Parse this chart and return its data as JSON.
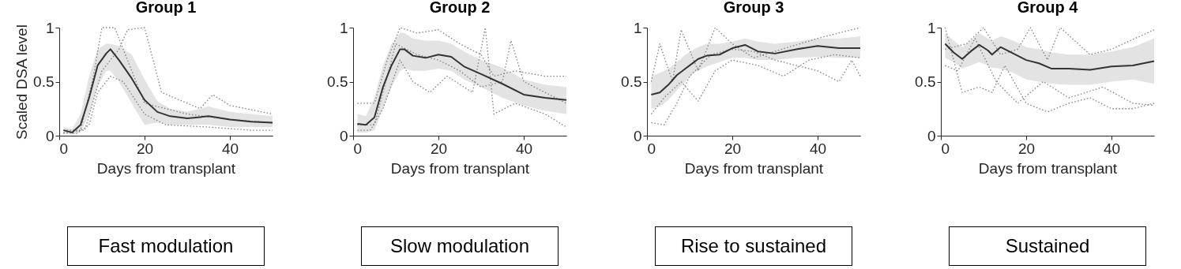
{
  "chart_data": [
    {
      "type": "line",
      "title": "Group 1",
      "xlabel": "Days from transplant",
      "ylabel": "Scaled DSA level",
      "xlim": [
        0,
        50
      ],
      "xticks": [
        0,
        20,
        40
      ],
      "ylim": [
        0,
        1
      ],
      "yticks": [
        0,
        0.5,
        1
      ],
      "annotations": [
        "Fast modulation"
      ],
      "series": [
        {
          "color": "#808080",
          "line_style": "dotted",
          "x": [
            1,
            5,
            8,
            10,
            13,
            16,
            20,
            30,
            40,
            50
          ],
          "values": [
            0.02,
            0.05,
            0.55,
            1,
            1,
            0.7,
            0.3,
            0.2,
            0.15,
            0.12
          ]
        },
        {
          "color": "#808080",
          "line_style": "dotted",
          "x": [
            1,
            6,
            10,
            14,
            16,
            20,
            24,
            33,
            36,
            40,
            50
          ],
          "values": [
            0.05,
            0.05,
            0.6,
            0.8,
            0.98,
            1,
            0.4,
            0.25,
            0.38,
            0.28,
            0.2
          ]
        },
        {
          "color": "#808080",
          "line_style": "dotted",
          "x": [
            1,
            4,
            7,
            9,
            12,
            15,
            20,
            25,
            35,
            45,
            50
          ],
          "values": [
            0.03,
            0.02,
            0.1,
            0.4,
            0.55,
            0.5,
            0.2,
            0.1,
            0.08,
            0.05,
            0.05
          ]
        },
        {
          "color": "#333333",
          "line_style": "solid",
          "x": [
            1,
            3,
            5,
            7,
            9,
            11,
            12,
            14,
            17,
            20,
            23,
            26,
            30,
            35,
            40,
            45,
            50
          ],
          "values": [
            0.05,
            0.03,
            0.1,
            0.35,
            0.65,
            0.76,
            0.8,
            0.7,
            0.53,
            0.33,
            0.22,
            0.18,
            0.16,
            0.18,
            0.15,
            0.13,
            0.12
          ],
          "lower": [
            0.02,
            0.01,
            0.03,
            0.2,
            0.45,
            0.6,
            0.6,
            0.5,
            0.3,
            0.1,
            0.12,
            0.1,
            0.1,
            0.1,
            0.08,
            0.08,
            0.08
          ],
          "upper": [
            0.08,
            0.06,
            0.2,
            0.55,
            0.8,
            0.85,
            0.85,
            0.83,
            0.75,
            0.52,
            0.32,
            0.25,
            0.22,
            0.27,
            0.22,
            0.2,
            0.18
          ]
        }
      ]
    },
    {
      "type": "line",
      "title": "Group 2",
      "xlabel": "Days from transplant",
      "xlim": [
        0,
        50
      ],
      "xticks": [
        0,
        20,
        40
      ],
      "ylim": [
        0,
        1
      ],
      "yticks": [
        0,
        0.5,
        1
      ],
      "annotations": [
        "Slow modulation"
      ],
      "series": [
        {
          "color": "#808080",
          "line_style": "dotted",
          "x": [
            1,
            5,
            8,
            11,
            15,
            20,
            25,
            30,
            33,
            38,
            45,
            50
          ],
          "values": [
            0.3,
            0.3,
            0.7,
            1,
            0.95,
            0.98,
            0.85,
            0.75,
            0.55,
            0.6,
            0.55,
            0.55
          ]
        },
        {
          "color": "#808080",
          "line_style": "dotted",
          "x": [
            1,
            4,
            7,
            11,
            14,
            18,
            22,
            28,
            31,
            33,
            38,
            45,
            50
          ],
          "values": [
            0.05,
            0.05,
            0.25,
            0.7,
            0.5,
            0.4,
            0.55,
            0.4,
            1,
            0.2,
            0.3,
            0.2,
            0.08
          ]
        },
        {
          "color": "#808080",
          "line_style": "dotted",
          "x": [
            1,
            5,
            8,
            10,
            15,
            20,
            25,
            30,
            35,
            37,
            40,
            50
          ],
          "values": [
            0.1,
            0.1,
            0.55,
            0.85,
            0.75,
            0.7,
            0.6,
            0.45,
            0.5,
            0.88,
            0.5,
            0.3
          ]
        },
        {
          "color": "#333333",
          "line_style": "solid",
          "x": [
            1,
            3,
            5,
            7,
            9,
            11,
            12,
            14,
            17,
            20,
            23,
            26,
            30,
            35,
            40,
            45,
            50
          ],
          "values": [
            0.11,
            0.1,
            0.17,
            0.45,
            0.65,
            0.8,
            0.8,
            0.74,
            0.72,
            0.75,
            0.73,
            0.64,
            0.57,
            0.48,
            0.38,
            0.35,
            0.33
          ],
          "lower": [
            0.03,
            0.03,
            0.05,
            0.25,
            0.45,
            0.6,
            0.62,
            0.6,
            0.6,
            0.62,
            0.6,
            0.52,
            0.45,
            0.35,
            0.28,
            0.23,
            0.2
          ],
          "upper": [
            0.2,
            0.18,
            0.35,
            0.65,
            0.85,
            0.95,
            0.95,
            0.9,
            0.88,
            0.88,
            0.85,
            0.78,
            0.7,
            0.63,
            0.52,
            0.47,
            0.45
          ]
        }
      ]
    },
    {
      "type": "line",
      "title": "Group 3",
      "xlabel": "Days from transplant",
      "xlim": [
        0,
        50
      ],
      "xticks": [
        0,
        20,
        40
      ],
      "ylim": [
        0,
        1
      ],
      "yticks": [
        0,
        0.5,
        1
      ],
      "annotations": [
        "Rise to sustained"
      ],
      "series": [
        {
          "color": "#808080",
          "line_style": "dotted",
          "x": [
            1,
            4,
            7,
            10,
            15,
            20,
            25,
            30,
            35,
            40,
            45,
            48,
            50
          ],
          "values": [
            0.12,
            0.1,
            0.3,
            0.55,
            0.75,
            0.8,
            0.78,
            0.7,
            0.65,
            0.6,
            0.5,
            0.7,
            0.55
          ]
        },
        {
          "color": "#808080",
          "line_style": "dotted",
          "x": [
            1,
            3,
            6,
            8,
            12,
            16,
            20,
            25,
            30,
            40,
            45,
            50
          ],
          "values": [
            0.5,
            0.85,
            0.5,
            0.98,
            0.6,
            1,
            0.85,
            0.72,
            0.78,
            0.9,
            0.95,
            1
          ]
        },
        {
          "color": "#808080",
          "line_style": "dotted",
          "x": [
            1,
            4,
            8,
            12,
            16,
            20,
            26,
            32,
            38,
            44,
            50
          ],
          "values": [
            0.2,
            0.35,
            0.5,
            0.32,
            0.6,
            0.7,
            0.65,
            0.55,
            0.7,
            0.75,
            0.72
          ]
        },
        {
          "color": "#333333",
          "line_style": "solid",
          "x": [
            1,
            3,
            5,
            7,
            9,
            11,
            12,
            14,
            17,
            20,
            23,
            26,
            30,
            35,
            40,
            45,
            50
          ],
          "values": [
            0.38,
            0.4,
            0.47,
            0.56,
            0.62,
            0.68,
            0.71,
            0.74,
            0.75,
            0.81,
            0.84,
            0.78,
            0.76,
            0.8,
            0.83,
            0.81,
            0.81
          ],
          "lower": [
            0.25,
            0.27,
            0.33,
            0.42,
            0.5,
            0.58,
            0.6,
            0.64,
            0.68,
            0.72,
            0.72,
            0.7,
            0.7,
            0.72,
            0.73,
            0.72,
            0.72
          ],
          "upper": [
            0.55,
            0.58,
            0.62,
            0.68,
            0.75,
            0.8,
            0.82,
            0.85,
            0.85,
            0.87,
            0.9,
            0.87,
            0.85,
            0.87,
            0.9,
            0.9,
            0.92
          ]
        }
      ]
    },
    {
      "type": "line",
      "title": "Group 4",
      "xlabel": "Days from transplant",
      "xlim": [
        0,
        50
      ],
      "xticks": [
        0,
        20,
        40
      ],
      "ylim": [
        0,
        1
      ],
      "yticks": [
        0,
        0.5,
        1
      ],
      "annotations": [
        "Sustained"
      ],
      "series": [
        {
          "color": "#808080",
          "line_style": "dotted",
          "x": [
            1,
            5,
            9,
            12,
            15,
            20,
            25,
            30,
            35,
            40,
            45,
            50
          ],
          "values": [
            1,
            0.4,
            0.45,
            0.4,
            0.65,
            0.3,
            0.22,
            0.3,
            0.35,
            0.25,
            0.25,
            0.3
          ]
        },
        {
          "color": "#808080",
          "line_style": "dotted",
          "x": [
            1,
            6,
            10,
            14,
            18,
            21,
            25,
            28,
            35,
            40,
            50
          ],
          "values": [
            0.8,
            0.85,
            1,
            0.75,
            0.8,
            1,
            0.7,
            1,
            0.75,
            0.8,
            0.98
          ]
        },
        {
          "color": "#808080",
          "line_style": "dotted",
          "x": [
            1,
            4,
            8,
            13,
            18,
            24,
            30,
            38,
            45,
            50
          ],
          "values": [
            0.65,
            0.6,
            0.9,
            0.5,
            0.3,
            0.5,
            0.35,
            0.45,
            0.3,
            0.28
          ]
        },
        {
          "color": "#333333",
          "line_style": "solid",
          "x": [
            1,
            3,
            5,
            7,
            9,
            11,
            12,
            14,
            17,
            20,
            23,
            26,
            30,
            35,
            40,
            45,
            50
          ],
          "values": [
            0.85,
            0.77,
            0.71,
            0.78,
            0.84,
            0.79,
            0.75,
            0.82,
            0.76,
            0.7,
            0.67,
            0.62,
            0.62,
            0.61,
            0.64,
            0.65,
            0.69
          ],
          "lower": [
            0.72,
            0.68,
            0.62,
            0.65,
            0.68,
            0.65,
            0.63,
            0.62,
            0.58,
            0.52,
            0.5,
            0.48,
            0.47,
            0.47,
            0.5,
            0.52,
            0.48
          ],
          "upper": [
            0.95,
            0.88,
            0.82,
            0.88,
            0.95,
            0.9,
            0.88,
            0.92,
            0.88,
            0.82,
            0.8,
            0.77,
            0.75,
            0.75,
            0.78,
            0.82,
            0.9
          ]
        }
      ]
    }
  ]
}
